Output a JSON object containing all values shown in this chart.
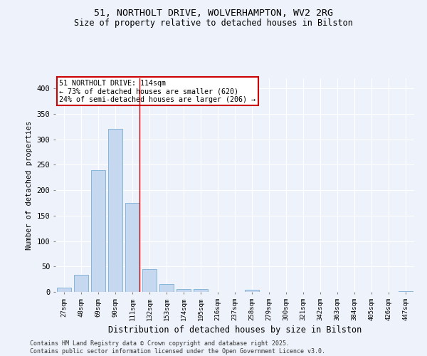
{
  "title_line1": "51, NORTHOLT DRIVE, WOLVERHAMPTON, WV2 2RG",
  "title_line2": "Size of property relative to detached houses in Bilston",
  "xlabel": "Distribution of detached houses by size in Bilston",
  "ylabel": "Number of detached properties",
  "categories": [
    "27sqm",
    "48sqm",
    "69sqm",
    "90sqm",
    "111sqm",
    "132sqm",
    "153sqm",
    "174sqm",
    "195sqm",
    "216sqm",
    "237sqm",
    "258sqm",
    "279sqm",
    "300sqm",
    "321sqm",
    "342sqm",
    "363sqm",
    "384sqm",
    "405sqm",
    "426sqm",
    "447sqm"
  ],
  "values": [
    8,
    33,
    240,
    320,
    175,
    45,
    16,
    5,
    5,
    0,
    0,
    4,
    0,
    0,
    0,
    0,
    0,
    0,
    0,
    0,
    2
  ],
  "bar_color": "#c5d8ef",
  "bar_edgecolor": "#7bafd4",
  "highlight_index": 4,
  "highlight_line_color": "#cc0000",
  "annotation_text": "51 NORTHOLT DRIVE: 114sqm\n← 73% of detached houses are smaller (620)\n24% of semi-detached houses are larger (206) →",
  "annotation_box_color": "#cc0000",
  "ylim": [
    0,
    420
  ],
  "yticks": [
    0,
    50,
    100,
    150,
    200,
    250,
    300,
    350,
    400
  ],
  "background_color": "#eef2fa",
  "grid_color": "#ffffff",
  "footer": "Contains HM Land Registry data © Crown copyright and database right 2025.\nContains public sector information licensed under the Open Government Licence v3.0."
}
